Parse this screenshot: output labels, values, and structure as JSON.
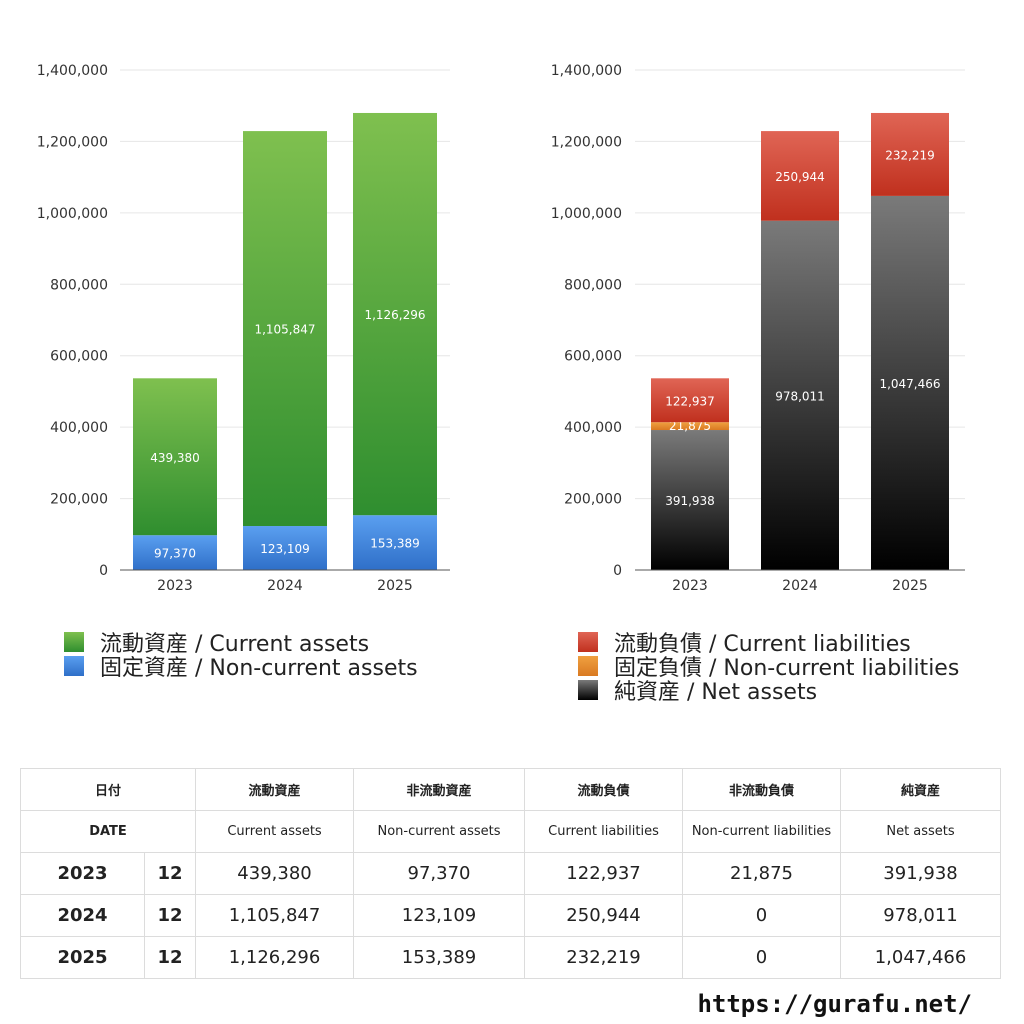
{
  "chart_data": [
    {
      "type": "bar",
      "stacked": true,
      "categories": [
        "2023",
        "2024",
        "2025"
      ],
      "series": [
        {
          "name": "固定資産 / Non-current assets",
          "values": [
            97370,
            123109,
            153389
          ],
          "labels": [
            "97,370",
            "123,109",
            "153,389"
          ],
          "color": "#3a7fd9"
        },
        {
          "name": "流動資産 / Current assets",
          "values": [
            439380,
            1105847,
            1126296
          ],
          "labels": [
            "439,380",
            "1,105,847",
            "1,126,296"
          ],
          "color": "#5fa83f"
        }
      ],
      "yticks": [
        "0",
        "200,000",
        "400,000",
        "600,000",
        "800,000",
        "1,000,000",
        "1,200,000",
        "1,400,000"
      ],
      "ylim": [
        0,
        1400000
      ],
      "grid": true,
      "legend_position": "bottom",
      "legend": [
        "流動資産 / Current assets",
        "固定資産 / Non-current assets"
      ]
    },
    {
      "type": "bar",
      "stacked": true,
      "categories": [
        "2023",
        "2024",
        "2025"
      ],
      "series": [
        {
          "name": "純資産 / Net assets",
          "values": [
            391938,
            978011,
            1047466
          ],
          "labels": [
            "391,938",
            "978,011",
            "1,047,466"
          ],
          "color": "#333333"
        },
        {
          "name": "固定負債 / Non-current liabilities",
          "values": [
            21875,
            0,
            0
          ],
          "labels": [
            "21,875",
            "",
            ""
          ],
          "color": "#e08a30"
        },
        {
          "name": "流動負債 / Current liabilities",
          "values": [
            122937,
            250944,
            232219
          ],
          "labels": [
            "122,937",
            "250,944",
            "232,219"
          ],
          "color": "#cc3b2b"
        }
      ],
      "yticks": [
        "0",
        "200,000",
        "400,000",
        "600,000",
        "800,000",
        "1,000,000",
        "1,200,000",
        "1,400,000"
      ],
      "ylim": [
        0,
        1400000
      ],
      "grid": true,
      "legend_position": "bottom",
      "legend": [
        "流動負債 / Current liabilities",
        "固定負債 / Non-current liabilities",
        "純資産 / Net assets"
      ]
    }
  ],
  "legends": {
    "assets": [
      {
        "label": "流動資産 / Current assets",
        "color": "#5fa83f"
      },
      {
        "label": "固定資産 / Non-current assets",
        "color": "#3a7fd9"
      }
    ],
    "liabilities": [
      {
        "label": "流動負債 / Current liabilities",
        "color": "#cc3b2b"
      },
      {
        "label": "固定負債 / Non-current liabilities",
        "color": "#e08a30"
      },
      {
        "label": "純資産 / Net assets",
        "color": "#333333"
      }
    ]
  },
  "table": {
    "header_jp": {
      "date": "日付",
      "current_assets": "流動資産",
      "noncurrent_assets": "非流動資産",
      "current_liabilities": "流動負債",
      "noncurrent_liabilities": "非流動負債",
      "net_assets": "純資産"
    },
    "header_en": {
      "date": "DATE",
      "current_assets": "Current assets",
      "noncurrent_assets": "Non-current assets",
      "current_liabilities": "Current liabilities",
      "noncurrent_liabilities": "Non-current liabilities",
      "net_assets": "Net assets"
    },
    "rows": [
      {
        "year": "2023",
        "month": "12",
        "current_assets": "439,380",
        "noncurrent_assets": "97,370",
        "current_liabilities": "122,937",
        "noncurrent_liabilities": "21,875",
        "net_assets": "391,938"
      },
      {
        "year": "2024",
        "month": "12",
        "current_assets": "1,105,847",
        "noncurrent_assets": "123,109",
        "current_liabilities": "250,944",
        "noncurrent_liabilities": "0",
        "net_assets": "978,011"
      },
      {
        "year": "2025",
        "month": "12",
        "current_assets": "1,126,296",
        "noncurrent_assets": "153,389",
        "current_liabilities": "232,219",
        "noncurrent_liabilities": "0",
        "net_assets": "1,047,466"
      }
    ]
  },
  "footer": {
    "url": "https://gurafu.net/"
  }
}
